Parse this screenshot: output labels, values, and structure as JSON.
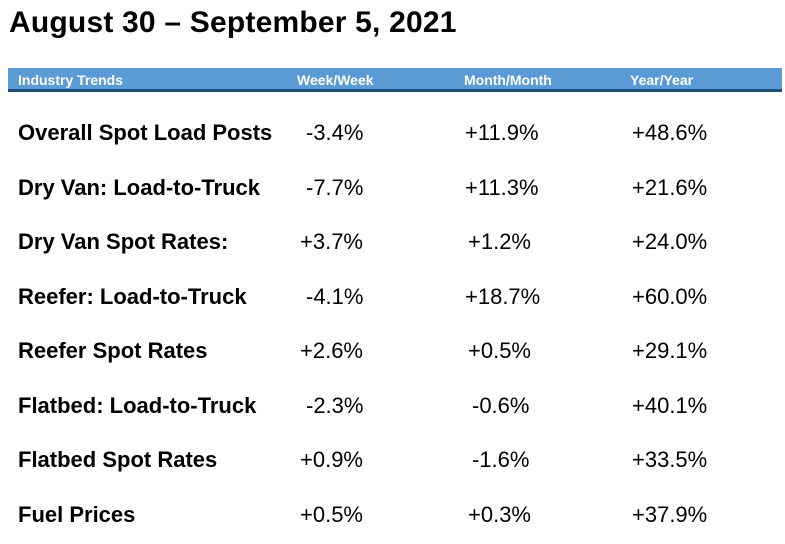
{
  "title": "August 30 – September 5, 2021",
  "header": {
    "label": "Industry Trends",
    "col1": "Week/Week",
    "col2": "Month/Month",
    "col3": "Year/Year"
  },
  "colors": {
    "header_bg": "#5b9bd5",
    "header_border": "#1f4e79",
    "header_text": "#ffffff"
  },
  "rows": [
    {
      "label": "Overall Spot Load Posts",
      "week": "-3.4%",
      "month": "+11.9%",
      "year": "+48.6%"
    },
    {
      "label": "Dry Van: Load-to-Truck",
      "week": "-7.7%",
      "month": "+11.3%",
      "year": "+21.6%"
    },
    {
      "label": "Dry Van Spot Rates:",
      "week": "+3.7%",
      "month": "+1.2%",
      "year": "+24.0%"
    },
    {
      "label": "Reefer: Load-to-Truck",
      "week": "-4.1%",
      "month": "+18.7%",
      "year": "+60.0%"
    },
    {
      "label": "Reefer Spot Rates",
      "week": "+2.6%",
      "month": "+0.5%",
      "year": "+29.1%"
    },
    {
      "label": "Flatbed: Load-to-Truck",
      "week": "-2.3%",
      "month": "-0.6%",
      "year": "+40.1%"
    },
    {
      "label": "Flatbed Spot Rates",
      "week": "+0.9%",
      "month": "-1.6%",
      "year": "+33.5%"
    },
    {
      "label": "Fuel Prices",
      "week": "+0.5%",
      "month": "+0.3%",
      "year": "+37.9%"
    }
  ]
}
